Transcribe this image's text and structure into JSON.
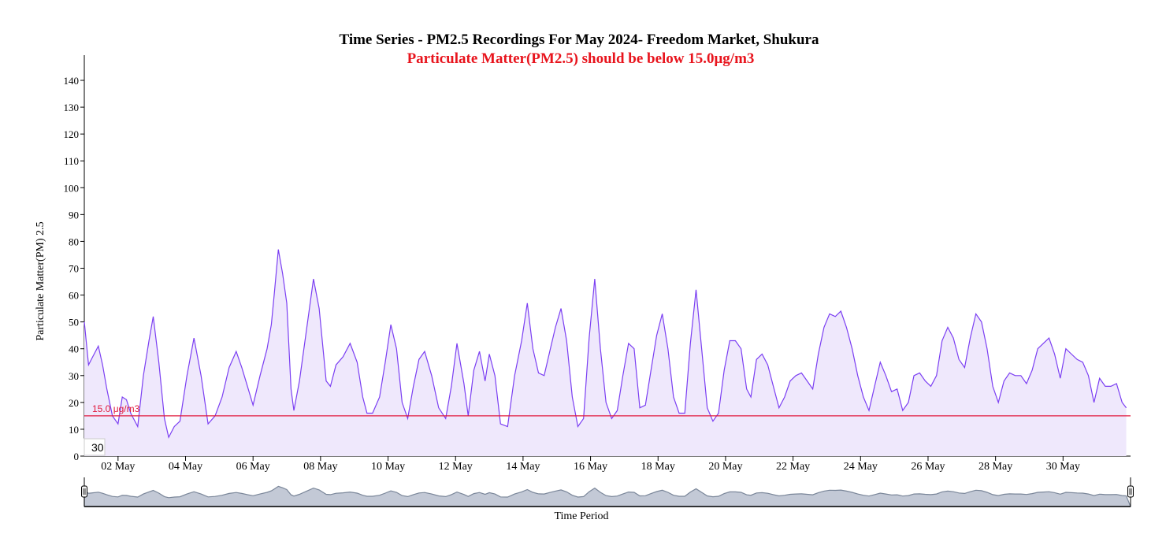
{
  "chart_data": {
    "type": "area",
    "title": "Time Series - PM2.5 Recordings For May 2024- Freedom Market, Shukura",
    "subtitle": "Particulate Matter(PM2.5) should be below 15.0μg/m3",
    "xlabel": "Time Period",
    "ylabel": "Particulate Matter(PM) 2.5",
    "ylim": [
      0,
      150
    ],
    "xlim": [
      "2024-05-01",
      "2024-06-01"
    ],
    "y_ticks": [
      "0",
      "10",
      "20",
      "30",
      "40",
      "50",
      "60",
      "70",
      "80",
      "90",
      "100",
      "110",
      "120",
      "130",
      "140"
    ],
    "x_tick_labels": [
      "02 May",
      "04 May",
      "06 May",
      "08 May",
      "10 May",
      "12 May",
      "14 May",
      "16 May",
      "18 May",
      "20 May",
      "22 May",
      "24 May",
      "26 May",
      "28 May",
      "30 May"
    ],
    "threshold": {
      "value": 15.0,
      "label": "15.0 μg/m3",
      "color": "#e0183c"
    },
    "rolling_window_label": "30",
    "grid": false,
    "series": [
      {
        "color": "#7b3ff2",
        "fill": "#efe8fc",
        "points": [
          [
            "2024-05-01 00:00",
            50
          ],
          [
            "2024-05-01 03:00",
            34
          ],
          [
            "2024-05-01 06:00",
            37
          ],
          [
            "2024-05-01 10:00",
            41
          ],
          [
            "2024-05-01 13:00",
            34
          ],
          [
            "2024-05-01 16:00",
            25
          ],
          [
            "2024-05-01 20:00",
            15
          ],
          [
            "2024-05-02 00:00",
            12
          ],
          [
            "2024-05-02 03:00",
            22
          ],
          [
            "2024-05-02 06:00",
            21
          ],
          [
            "2024-05-02 09:00",
            16
          ],
          [
            "2024-05-02 14:00",
            11
          ],
          [
            "2024-05-02 18:00",
            30
          ],
          [
            "2024-05-02 22:00",
            43
          ],
          [
            "2024-05-03 01:00",
            52
          ],
          [
            "2024-05-03 05:00",
            35
          ],
          [
            "2024-05-03 09:00",
            14
          ],
          [
            "2024-05-03 12:00",
            7
          ],
          [
            "2024-05-03 16:00",
            11
          ],
          [
            "2024-05-03 20:00",
            13
          ],
          [
            "2024-05-04 01:00",
            30
          ],
          [
            "2024-05-04 06:00",
            44
          ],
          [
            "2024-05-04 11:00",
            30
          ],
          [
            "2024-05-04 16:00",
            12
          ],
          [
            "2024-05-04 21:00",
            15
          ],
          [
            "2024-05-05 02:00",
            22
          ],
          [
            "2024-05-05 07:00",
            33
          ],
          [
            "2024-05-05 12:00",
            39
          ],
          [
            "2024-05-05 16:00",
            33
          ],
          [
            "2024-05-05 20:00",
            26
          ],
          [
            "2024-05-06 00:00",
            19
          ],
          [
            "2024-05-06 05:00",
            30
          ],
          [
            "2024-05-06 10:00",
            40
          ],
          [
            "2024-05-06 13:00",
            49
          ],
          [
            "2024-05-06 15:00",
            60
          ],
          [
            "2024-05-06 18:00",
            77
          ],
          [
            "2024-05-06 21:00",
            68
          ],
          [
            "2024-05-07 00:00",
            57
          ],
          [
            "2024-05-07 03:00",
            25
          ],
          [
            "2024-05-07 05:00",
            17
          ],
          [
            "2024-05-07 09:00",
            28
          ],
          [
            "2024-05-07 14:00",
            47
          ],
          [
            "2024-05-07 19:00",
            66
          ],
          [
            "2024-05-07 23:00",
            55
          ],
          [
            "2024-05-08 04:00",
            28
          ],
          [
            "2024-05-08 07:00",
            26
          ],
          [
            "2024-05-08 11:00",
            34
          ],
          [
            "2024-05-08 16:00",
            37
          ],
          [
            "2024-05-08 21:00",
            42
          ],
          [
            "2024-05-09 02:00",
            35
          ],
          [
            "2024-05-09 06:00",
            22
          ],
          [
            "2024-05-09 09:00",
            16
          ],
          [
            "2024-05-09 13:00",
            16
          ],
          [
            "2024-05-09 18:00",
            22
          ],
          [
            "2024-05-09 22:00",
            35
          ],
          [
            "2024-05-10 02:00",
            49
          ],
          [
            "2024-05-10 06:00",
            40
          ],
          [
            "2024-05-10 10:00",
            20
          ],
          [
            "2024-05-10 14:00",
            14
          ],
          [
            "2024-05-10 18:00",
            26
          ],
          [
            "2024-05-10 22:00",
            36
          ],
          [
            "2024-05-11 02:00",
            39
          ],
          [
            "2024-05-11 07:00",
            30
          ],
          [
            "2024-05-11 12:00",
            18
          ],
          [
            "2024-05-11 17:00",
            14
          ],
          [
            "2024-05-11 21:00",
            26
          ],
          [
            "2024-05-12 01:00",
            42
          ],
          [
            "2024-05-12 06:00",
            27
          ],
          [
            "2024-05-12 09:00",
            15
          ],
          [
            "2024-05-12 13:00",
            32
          ],
          [
            "2024-05-12 17:00",
            39
          ],
          [
            "2024-05-12 21:00",
            28
          ],
          [
            "2024-05-13 00:00",
            38
          ],
          [
            "2024-05-13 04:00",
            30
          ],
          [
            "2024-05-13 08:00",
            12
          ],
          [
            "2024-05-13 13:00",
            11
          ],
          [
            "2024-05-13 18:00",
            30
          ],
          [
            "2024-05-13 23:00",
            43
          ],
          [
            "2024-05-14 03:00",
            57
          ],
          [
            "2024-05-14 07:00",
            40
          ],
          [
            "2024-05-14 11:00",
            31
          ],
          [
            "2024-05-14 15:00",
            30
          ],
          [
            "2024-05-14 19:00",
            39
          ],
          [
            "2024-05-14 23:00",
            48
          ],
          [
            "2024-05-15 03:00",
            55
          ],
          [
            "2024-05-15 07:00",
            43
          ],
          [
            "2024-05-15 11:00",
            22
          ],
          [
            "2024-05-15 15:00",
            11
          ],
          [
            "2024-05-15 19:00",
            14
          ],
          [
            "2024-05-15 23:00",
            44
          ],
          [
            "2024-05-16 03:00",
            66
          ],
          [
            "2024-05-16 07:00",
            40
          ],
          [
            "2024-05-16 11:00",
            20
          ],
          [
            "2024-05-16 15:00",
            14
          ],
          [
            "2024-05-16 19:00",
            17
          ],
          [
            "2024-05-16 23:00",
            30
          ],
          [
            "2024-05-17 03:00",
            42
          ],
          [
            "2024-05-17 07:00",
            40
          ],
          [
            "2024-05-17 11:00",
            18
          ],
          [
            "2024-05-17 15:00",
            19
          ],
          [
            "2024-05-17 19:00",
            32
          ],
          [
            "2024-05-17 23:00",
            45
          ],
          [
            "2024-05-18 03:00",
            53
          ],
          [
            "2024-05-18 07:00",
            40
          ],
          [
            "2024-05-18 11:00",
            22
          ],
          [
            "2024-05-18 15:00",
            16
          ],
          [
            "2024-05-18 19:00",
            16
          ],
          [
            "2024-05-18 23:00",
            42
          ],
          [
            "2024-05-19 03:00",
            62
          ],
          [
            "2024-05-19 07:00",
            40
          ],
          [
            "2024-05-19 11:00",
            18
          ],
          [
            "2024-05-19 15:00",
            13
          ],
          [
            "2024-05-19 19:00",
            16
          ],
          [
            "2024-05-19 23:00",
            32
          ],
          [
            "2024-05-20 03:00",
            43
          ],
          [
            "2024-05-20 07:00",
            43
          ],
          [
            "2024-05-20 11:00",
            40
          ],
          [
            "2024-05-20 15:00",
            25
          ],
          [
            "2024-05-20 18:00",
            22
          ],
          [
            "2024-05-20 22:00",
            36
          ],
          [
            "2024-05-21 02:00",
            38
          ],
          [
            "2024-05-21 06:00",
            34
          ],
          [
            "2024-05-21 10:00",
            26
          ],
          [
            "2024-05-21 14:00",
            18
          ],
          [
            "2024-05-21 18:00",
            22
          ],
          [
            "2024-05-21 22:00",
            28
          ],
          [
            "2024-05-22 02:00",
            30
          ],
          [
            "2024-05-22 06:00",
            31
          ],
          [
            "2024-05-22 10:00",
            28
          ],
          [
            "2024-05-22 14:00",
            25
          ],
          [
            "2024-05-22 18:00",
            38
          ],
          [
            "2024-05-22 22:00",
            48
          ],
          [
            "2024-05-23 02:00",
            53
          ],
          [
            "2024-05-23 06:00",
            52
          ],
          [
            "2024-05-23 10:00",
            54
          ],
          [
            "2024-05-23 14:00",
            48
          ],
          [
            "2024-05-23 18:00",
            40
          ],
          [
            "2024-05-23 22:00",
            30
          ],
          [
            "2024-05-24 02:00",
            22
          ],
          [
            "2024-05-24 06:00",
            17
          ],
          [
            "2024-05-24 10:00",
            26
          ],
          [
            "2024-05-24 14:00",
            35
          ],
          [
            "2024-05-24 18:00",
            30
          ],
          [
            "2024-05-24 22:00",
            24
          ],
          [
            "2024-05-25 02:00",
            25
          ],
          [
            "2024-05-25 06:00",
            17
          ],
          [
            "2024-05-25 10:00",
            20
          ],
          [
            "2024-05-25 14:00",
            30
          ],
          [
            "2024-05-25 18:00",
            31
          ],
          [
            "2024-05-25 22:00",
            28
          ],
          [
            "2024-05-26 02:00",
            26
          ],
          [
            "2024-05-26 06:00",
            30
          ],
          [
            "2024-05-26 10:00",
            43
          ],
          [
            "2024-05-26 14:00",
            48
          ],
          [
            "2024-05-26 18:00",
            44
          ],
          [
            "2024-05-26 22:00",
            36
          ],
          [
            "2024-05-27 02:00",
            33
          ],
          [
            "2024-05-27 06:00",
            44
          ],
          [
            "2024-05-27 10:00",
            53
          ],
          [
            "2024-05-27 14:00",
            50
          ],
          [
            "2024-05-27 18:00",
            40
          ],
          [
            "2024-05-27 22:00",
            26
          ],
          [
            "2024-05-28 02:00",
            20
          ],
          [
            "2024-05-28 06:00",
            28
          ],
          [
            "2024-05-28 10:00",
            31
          ],
          [
            "2024-05-28 14:00",
            30
          ],
          [
            "2024-05-28 18:00",
            30
          ],
          [
            "2024-05-28 22:00",
            27
          ],
          [
            "2024-05-29 02:00",
            32
          ],
          [
            "2024-05-29 06:00",
            40
          ],
          [
            "2024-05-29 10:00",
            42
          ],
          [
            "2024-05-29 14:00",
            44
          ],
          [
            "2024-05-29 18:00",
            38
          ],
          [
            "2024-05-29 22:00",
            29
          ],
          [
            "2024-05-30 02:00",
            40
          ],
          [
            "2024-05-30 06:00",
            38
          ],
          [
            "2024-05-30 10:00",
            36
          ],
          [
            "2024-05-30 14:00",
            35
          ],
          [
            "2024-05-30 18:00",
            30
          ],
          [
            "2024-05-30 22:00",
            20
          ],
          [
            "2024-05-31 02:00",
            29
          ],
          [
            "2024-05-31 06:00",
            26
          ],
          [
            "2024-05-31 10:00",
            26
          ],
          [
            "2024-05-31 14:00",
            27
          ],
          [
            "2024-05-31 18:00",
            20
          ],
          [
            "2024-05-31 21:00",
            18
          ]
        ]
      }
    ],
    "navigator": {
      "fill": "#c3c9d6",
      "stroke": "#7a8699"
    }
  }
}
